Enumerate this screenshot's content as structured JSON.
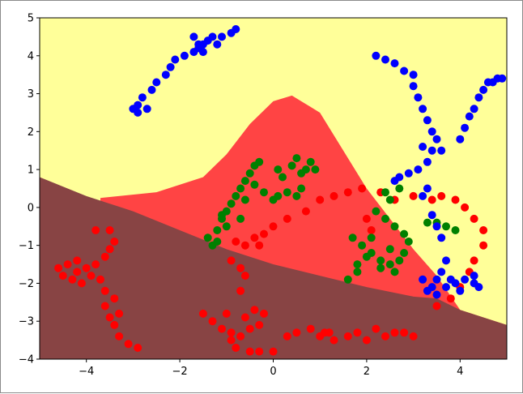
{
  "chart_data": {
    "type": "scatter",
    "title": "",
    "xlabel": "",
    "ylabel": "",
    "xlim": [
      -5,
      5
    ],
    "ylim": [
      -4,
      5
    ],
    "grid": false,
    "legend": "none",
    "x_ticks": [
      -4,
      -2,
      0,
      2,
      4
    ],
    "y_ticks": [
      -4,
      -3,
      -2,
      -1,
      0,
      1,
      2,
      3,
      4,
      5
    ],
    "x_tick_labels": [
      "−4",
      "−2",
      "0",
      "2",
      "4"
    ],
    "y_tick_labels": [
      "−4",
      "−3",
      "−2",
      "−1",
      "0",
      "1",
      "2",
      "3",
      "4",
      "5"
    ],
    "background_regions": [
      {
        "color": "#ffff99",
        "description": "upper region"
      },
      {
        "color": "#ff4444",
        "description": "central bump region"
      },
      {
        "color": "#884444",
        "description": "lower region"
      }
    ],
    "boundaries": {
      "lower": [
        [
          -5,
          0.8
        ],
        [
          -4,
          0.3
        ],
        [
          -3,
          -0.1
        ],
        [
          -2,
          -0.6
        ],
        [
          -1,
          -1.1
        ],
        [
          0,
          -1.5
        ],
        [
          1,
          -1.8
        ],
        [
          2,
          -2.1
        ],
        [
          3,
          -2.35
        ],
        [
          3.5,
          -2.4
        ],
        [
          4,
          -2.7
        ],
        [
          5,
          -3.1
        ]
      ],
      "upper": [
        [
          -3.7,
          0.25
        ],
        [
          -2.5,
          0.4
        ],
        [
          -1.5,
          0.8
        ],
        [
          -1,
          1.4
        ],
        [
          -0.5,
          2.2
        ],
        [
          0,
          2.8
        ],
        [
          0.4,
          2.95
        ],
        [
          1,
          2.5
        ],
        [
          1.5,
          1.5
        ],
        [
          2,
          0.5
        ],
        [
          2.5,
          -0.3
        ],
        [
          3,
          -1.1
        ],
        [
          3.5,
          -1.8
        ],
        [
          4,
          -2.7
        ],
        [
          5,
          -3.1
        ]
      ]
    },
    "series": [
      {
        "color": "#ff0000",
        "points": [
          [
            -4.6,
            -1.6
          ],
          [
            -4.5,
            -1.8
          ],
          [
            -4.4,
            -1.5
          ],
          [
            -4.3,
            -1.9
          ],
          [
            -4.2,
            -1.4
          ],
          [
            -4.2,
            -1.7
          ],
          [
            -4.1,
            -2.0
          ],
          [
            -4.0,
            -1.6
          ],
          [
            -3.9,
            -1.8
          ],
          [
            -3.8,
            -1.5
          ],
          [
            -3.7,
            -1.9
          ],
          [
            -3.6,
            -1.3
          ],
          [
            -3.5,
            -1.1
          ],
          [
            -3.4,
            -0.9
          ],
          [
            -3.5,
            -0.6
          ],
          [
            -3.8,
            -0.6
          ],
          [
            -3.6,
            -2.2
          ],
          [
            -3.6,
            -2.6
          ],
          [
            -3.5,
            -2.9
          ],
          [
            -3.4,
            -3.1
          ],
          [
            -3.3,
            -3.4
          ],
          [
            -3.1,
            -3.6
          ],
          [
            -2.9,
            -3.7
          ],
          [
            -3.4,
            -2.4
          ],
          [
            -3.3,
            -2.8
          ],
          [
            -1.5,
            -2.8
          ],
          [
            -1.3,
            -3.0
          ],
          [
            -1.1,
            -3.2
          ],
          [
            -0.9,
            -3.3
          ],
          [
            -0.7,
            -3.4
          ],
          [
            -0.5,
            -3.2
          ],
          [
            -0.3,
            -3.1
          ],
          [
            -0.2,
            -2.8
          ],
          [
            -0.4,
            -2.7
          ],
          [
            -0.6,
            -2.9
          ],
          [
            -1.0,
            -2.8
          ],
          [
            -0.9,
            -3.5
          ],
          [
            -0.8,
            -3.7
          ],
          [
            -0.5,
            -3.8
          ],
          [
            -0.3,
            -3.8
          ],
          [
            0.0,
            -3.8
          ],
          [
            0.3,
            -3.4
          ],
          [
            0.5,
            -3.3
          ],
          [
            0.8,
            -3.2
          ],
          [
            1.1,
            -3.3
          ],
          [
            1.3,
            -3.5
          ],
          [
            1.6,
            -3.4
          ],
          [
            1.8,
            -3.3
          ],
          [
            2.0,
            -3.5
          ],
          [
            2.2,
            -3.2
          ],
          [
            2.4,
            -3.4
          ],
          [
            2.6,
            -3.3
          ],
          [
            2.8,
            -3.3
          ],
          [
            3.0,
            -3.4
          ],
          [
            1.0,
            -3.4
          ],
          [
            1.2,
            -3.3
          ],
          [
            -0.8,
            -0.9
          ],
          [
            -0.6,
            -1.0
          ],
          [
            -0.4,
            -0.8
          ],
          [
            -0.2,
            -0.7
          ],
          [
            0.0,
            -0.5
          ],
          [
            0.3,
            -0.3
          ],
          [
            0.7,
            -0.1
          ],
          [
            1.0,
            0.2
          ],
          [
            1.3,
            0.3
          ],
          [
            1.6,
            0.4
          ],
          [
            1.9,
            0.5
          ],
          [
            2.3,
            0.4
          ],
          [
            2.6,
            0.2
          ],
          [
            3.0,
            0.3
          ],
          [
            3.4,
            0.2
          ],
          [
            3.6,
            0.3
          ],
          [
            3.9,
            0.2
          ],
          [
            4.1,
            0.0
          ],
          [
            4.3,
            -0.3
          ],
          [
            4.5,
            -0.6
          ],
          [
            4.5,
            -1.0
          ],
          [
            4.3,
            -1.4
          ],
          [
            4.2,
            -1.7
          ],
          [
            4.0,
            -2.1
          ],
          [
            3.8,
            -2.4
          ],
          [
            3.5,
            -2.6
          ],
          [
            -0.7,
            -1.6
          ],
          [
            -0.6,
            -1.8
          ],
          [
            -0.7,
            -2.2
          ],
          [
            2.0,
            -0.3
          ],
          [
            2.1,
            -0.6
          ],
          [
            -0.9,
            -1.4
          ],
          [
            -0.3,
            -1.0
          ]
        ]
      },
      {
        "color": "#008000",
        "points": [
          [
            -1.4,
            -0.8
          ],
          [
            -1.3,
            -1.0
          ],
          [
            -1.2,
            -0.6
          ],
          [
            -1.1,
            -0.3
          ],
          [
            -1.0,
            -0.1
          ],
          [
            -0.9,
            0.1
          ],
          [
            -0.8,
            0.3
          ],
          [
            -0.7,
            0.5
          ],
          [
            -0.6,
            0.7
          ],
          [
            -0.5,
            0.9
          ],
          [
            -0.4,
            1.1
          ],
          [
            -0.3,
            1.2
          ],
          [
            -0.4,
            0.6
          ],
          [
            -0.2,
            0.4
          ],
          [
            0.0,
            0.2
          ],
          [
            0.1,
            0.3
          ],
          [
            0.3,
            0.4
          ],
          [
            0.2,
            0.8
          ],
          [
            0.1,
            1.0
          ],
          [
            0.4,
            1.1
          ],
          [
            0.5,
            1.3
          ],
          [
            0.6,
            0.9
          ],
          [
            0.7,
            1.0
          ],
          [
            0.8,
            1.2
          ],
          [
            0.9,
            1.0
          ],
          [
            0.6,
            0.5
          ],
          [
            0.5,
            0.3
          ],
          [
            -0.6,
            0.2
          ],
          [
            -1.0,
            -0.5
          ],
          [
            -1.2,
            -0.9
          ],
          [
            -1.1,
            -0.2
          ],
          [
            -0.7,
            -0.3
          ],
          [
            1.7,
            -0.8
          ],
          [
            1.9,
            -1.0
          ],
          [
            2.1,
            -1.2
          ],
          [
            2.3,
            -1.4
          ],
          [
            2.5,
            -1.5
          ],
          [
            2.7,
            -1.4
          ],
          [
            2.8,
            -1.2
          ],
          [
            2.9,
            -0.9
          ],
          [
            2.8,
            -0.7
          ],
          [
            2.6,
            -0.5
          ],
          [
            2.4,
            -0.3
          ],
          [
            2.2,
            -0.1
          ],
          [
            2.5,
            0.2
          ],
          [
            2.7,
            0.5
          ],
          [
            2.4,
            0.4
          ],
          [
            2.0,
            -1.3
          ],
          [
            1.8,
            -1.5
          ],
          [
            1.6,
            -1.9
          ],
          [
            1.8,
            -1.7
          ],
          [
            2.3,
            -1.6
          ],
          [
            2.6,
            -1.7
          ],
          [
            2.5,
            -1.1
          ],
          [
            2.1,
            -0.8
          ],
          [
            3.3,
            -0.4
          ],
          [
            3.5,
            -0.4
          ],
          [
            3.7,
            -0.5
          ],
          [
            3.9,
            -0.6
          ]
        ]
      },
      {
        "color": "#0000ff",
        "points": [
          [
            -3.0,
            2.6
          ],
          [
            -2.9,
            2.7
          ],
          [
            -2.8,
            2.9
          ],
          [
            -2.6,
            3.1
          ],
          [
            -2.5,
            3.3
          ],
          [
            -2.3,
            3.5
          ],
          [
            -2.2,
            3.7
          ],
          [
            -2.1,
            3.9
          ],
          [
            -1.9,
            4.0
          ],
          [
            -1.7,
            4.1
          ],
          [
            -1.6,
            4.2
          ],
          [
            -1.5,
            4.3
          ],
          [
            -1.4,
            4.4
          ],
          [
            -1.3,
            4.5
          ],
          [
            -1.1,
            4.5
          ],
          [
            -0.9,
            4.6
          ],
          [
            -0.8,
            4.7
          ],
          [
            -1.7,
            4.5
          ],
          [
            -1.6,
            4.3
          ],
          [
            -1.2,
            4.3
          ],
          [
            -1.5,
            4.1
          ],
          [
            -2.7,
            2.6
          ],
          [
            -2.9,
            2.5
          ],
          [
            2.2,
            4.0
          ],
          [
            2.4,
            3.9
          ],
          [
            2.6,
            3.8
          ],
          [
            2.8,
            3.6
          ],
          [
            3.0,
            3.5
          ],
          [
            3.0,
            3.2
          ],
          [
            3.1,
            2.9
          ],
          [
            3.2,
            2.6
          ],
          [
            3.3,
            2.3
          ],
          [
            3.4,
            2.0
          ],
          [
            3.5,
            1.8
          ],
          [
            3.4,
            1.5
          ],
          [
            3.3,
            1.2
          ],
          [
            3.1,
            1.0
          ],
          [
            2.9,
            0.9
          ],
          [
            2.7,
            0.8
          ],
          [
            2.6,
            0.7
          ],
          [
            3.2,
            1.6
          ],
          [
            3.6,
            1.5
          ],
          [
            3.4,
            -0.2
          ],
          [
            3.5,
            -0.5
          ],
          [
            3.6,
            -0.8
          ],
          [
            3.7,
            -1.4
          ],
          [
            3.6,
            -1.7
          ],
          [
            3.5,
            -1.9
          ],
          [
            3.4,
            -2.1
          ],
          [
            3.5,
            -2.3
          ],
          [
            3.7,
            -2.1
          ],
          [
            3.9,
            -2.0
          ],
          [
            4.1,
            -1.9
          ],
          [
            4.3,
            -2.0
          ],
          [
            4.4,
            -2.1
          ],
          [
            4.3,
            -1.8
          ],
          [
            4.0,
            -2.2
          ],
          [
            3.8,
            -1.9
          ],
          [
            3.3,
            -2.2
          ],
          [
            3.2,
            -1.9
          ],
          [
            4.0,
            1.8
          ],
          [
            4.1,
            2.1
          ],
          [
            4.2,
            2.4
          ],
          [
            4.3,
            2.6
          ],
          [
            4.4,
            2.9
          ],
          [
            4.5,
            3.1
          ],
          [
            4.6,
            3.3
          ],
          [
            4.7,
            3.3
          ],
          [
            4.8,
            3.4
          ],
          [
            4.9,
            3.4
          ],
          [
            3.3,
            0.5
          ],
          [
            3.2,
            0.3
          ]
        ]
      }
    ]
  }
}
